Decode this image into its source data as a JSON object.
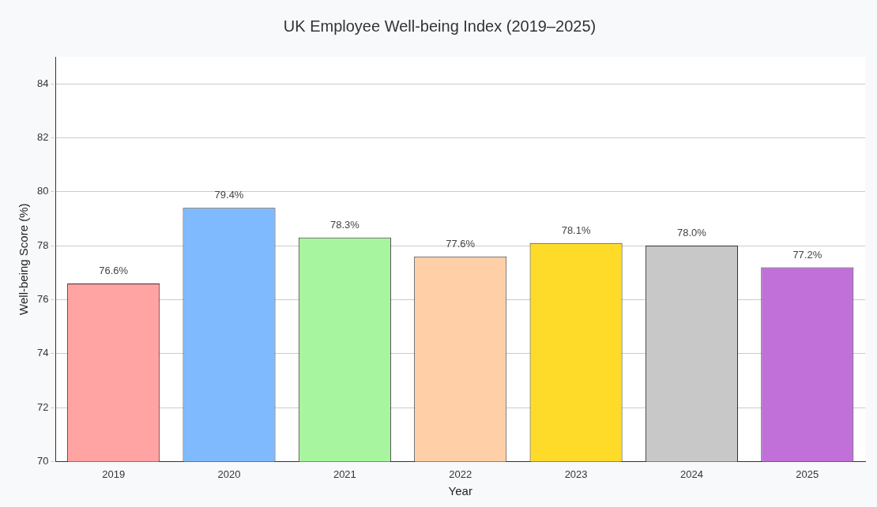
{
  "chart_data": {
    "type": "bar",
    "title": "UK Employee Well-being Index (2019–2025)",
    "xlabel": "Year",
    "ylabel": "Well-being Score (%)",
    "categories": [
      "2019",
      "2020",
      "2021",
      "2022",
      "2023",
      "2024",
      "2025"
    ],
    "values": [
      76.6,
      79.4,
      78.3,
      77.6,
      78.1,
      78.0,
      77.2
    ],
    "value_labels": [
      "76.6%",
      "79.4%",
      "78.3%",
      "77.6%",
      "78.1%",
      "78.0%",
      "77.2%"
    ],
    "colors": [
      "#ffa3a3",
      "#7fbaff",
      "#a8f5a0",
      "#ffd0a8",
      "#ffdb29",
      "#c8c8c8",
      "#c070d8"
    ],
    "ylim": [
      70,
      85
    ],
    "yticks": [
      70,
      72,
      74,
      76,
      78,
      80,
      82,
      84
    ],
    "grid": "y",
    "legend": false
  }
}
